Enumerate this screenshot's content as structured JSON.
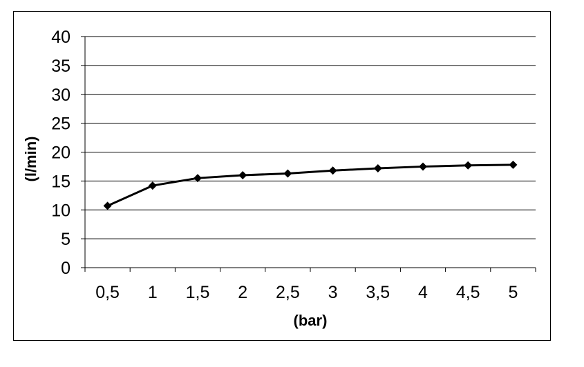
{
  "chart_data": {
    "type": "line",
    "title": "",
    "xlabel": "(bar)",
    "ylabel": "(l/min)",
    "categories": [
      "0,5",
      "1",
      "1,5",
      "2",
      "2,5",
      "3",
      "3,5",
      "4",
      "4,5",
      "5"
    ],
    "series": [
      {
        "values": [
          10.7,
          14.2,
          15.5,
          16.0,
          16.3,
          16.8,
          17.2,
          17.5,
          17.7,
          17.8
        ],
        "color": "#000000",
        "marker": "diamond"
      }
    ],
    "ylim": [
      0,
      40
    ],
    "yticks": [
      "0",
      "5",
      "10",
      "15",
      "20",
      "25",
      "30",
      "35",
      "40"
    ],
    "grid": "horizontal",
    "legend": "none"
  }
}
